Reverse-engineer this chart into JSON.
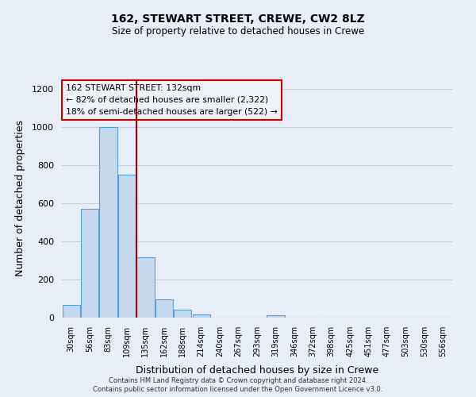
{
  "title1": "162, STEWART STREET, CREWE, CW2 8LZ",
  "title2": "Size of property relative to detached houses in Crewe",
  "xlabel": "Distribution of detached houses by size in Crewe",
  "ylabel": "Number of detached properties",
  "bar_labels": [
    "30sqm",
    "56sqm",
    "83sqm",
    "109sqm",
    "135sqm",
    "162sqm",
    "188sqm",
    "214sqm",
    "240sqm",
    "267sqm",
    "293sqm",
    "319sqm",
    "346sqm",
    "372sqm",
    "398sqm",
    "425sqm",
    "451sqm",
    "477sqm",
    "503sqm",
    "530sqm",
    "556sqm"
  ],
  "bar_values": [
    65,
    570,
    1000,
    750,
    315,
    95,
    40,
    18,
    0,
    0,
    0,
    12,
    0,
    0,
    0,
    0,
    0,
    0,
    0,
    0,
    0
  ],
  "bar_color": "#c5d8ee",
  "bar_edge_color": "#5a9fd4",
  "vline_x": 3.5,
  "vline_color": "#aa0000",
  "annotation_lines": [
    "162 STEWART STREET: 132sqm",
    "← 82% of detached houses are smaller (2,322)",
    "18% of semi-detached houses are larger (522) →"
  ],
  "annotation_box_facecolor": "#eef2f8",
  "annotation_box_edgecolor": "#cc0000",
  "ylim": [
    0,
    1250
  ],
  "yticks": [
    0,
    200,
    400,
    600,
    800,
    1000,
    1200
  ],
  "footer1": "Contains HM Land Registry data © Crown copyright and database right 2024.",
  "footer2": "Contains public sector information licensed under the Open Government Licence v3.0.",
  "bg_color": "#e8eef8",
  "plot_bg_color": "#e8eef8",
  "grid_color": "#c8d0dc"
}
